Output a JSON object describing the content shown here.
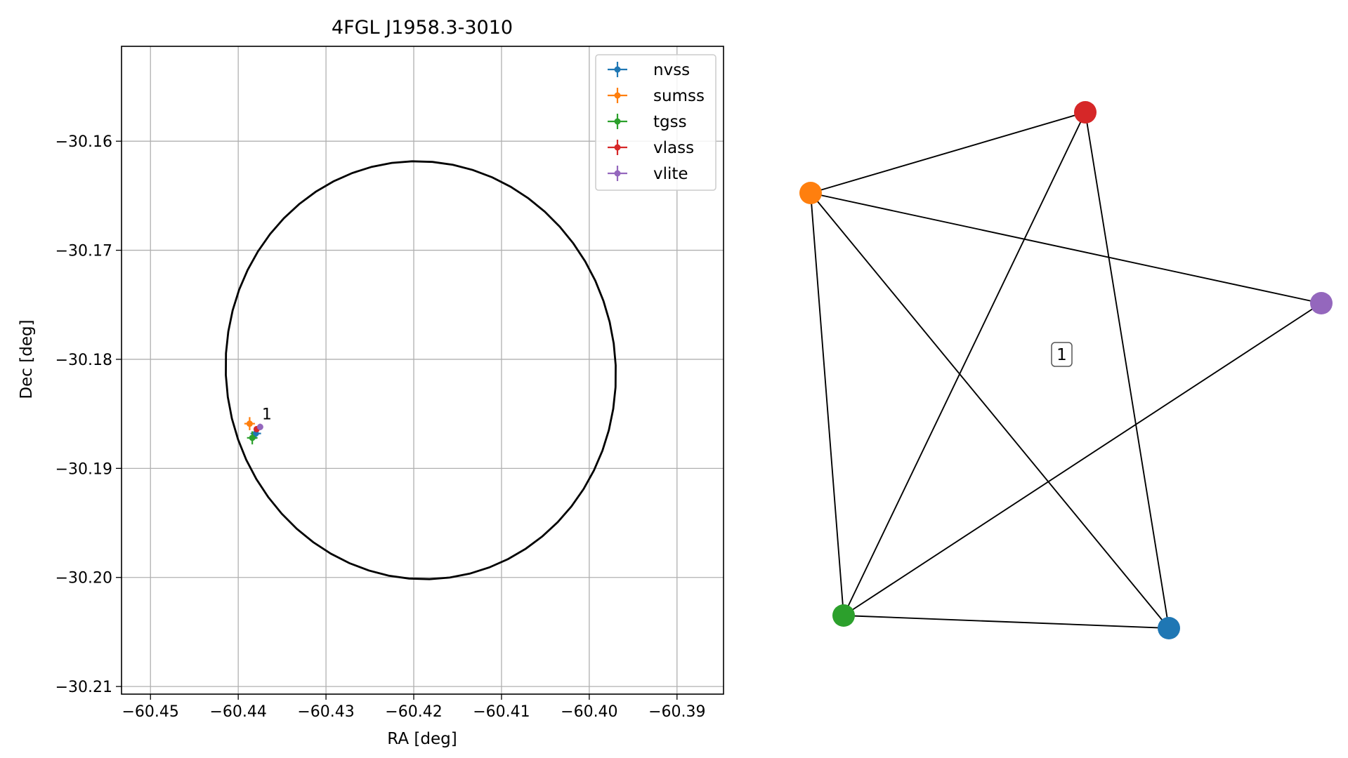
{
  "chart_data": [
    {
      "type": "scatter",
      "title": "4FGL J1958.3-3010",
      "xlabel": "RA [deg]",
      "ylabel": "Dec [deg]",
      "xlim": [
        -60.4533,
        -60.3847
      ],
      "ylim": [
        -30.2107,
        -30.1513
      ],
      "x_ticks": [
        -60.45,
        -60.44,
        -60.43,
        -60.42,
        -60.41,
        -60.4,
        -60.39
      ],
      "x_tick_labels": [
        "−60.45",
        "−60.44",
        "−60.43",
        "−60.42",
        "−60.41",
        "−60.40",
        "−60.39"
      ],
      "y_ticks": [
        -30.16,
        -30.17,
        -30.18,
        -30.19,
        -30.2,
        -30.21
      ],
      "y_tick_labels": [
        "−30.16",
        "−30.17",
        "−30.18",
        "−30.19",
        "−30.20",
        "−30.21"
      ],
      "grid": true,
      "legend_placement": "upper-right",
      "ellipse": {
        "center_ra": -60.4192,
        "center_dec": -30.181,
        "semi_axis_ra": 0.02225,
        "semi_axis_dec": 0.01915,
        "angle_deg": -4,
        "color": "#000000"
      },
      "series": [
        {
          "name": "nvss",
          "color": "#1f77b4",
          "x": -60.438,
          "y": -30.1868,
          "xerr": 0.0006,
          "yerr": 0.0005
        },
        {
          "name": "sumss",
          "color": "#ff7f0e",
          "x": -60.4387,
          "y": -30.1859,
          "xerr": 0.0006,
          "yerr": 0.0006
        },
        {
          "name": "tgss",
          "color": "#2ca02c",
          "x": -60.4384,
          "y": -30.1872,
          "xerr": 0.0006,
          "yerr": 0.0006
        },
        {
          "name": "vlass",
          "color": "#d62728",
          "x": -60.4379,
          "y": -30.1864,
          "xerr": 0.0002,
          "yerr": 0.0002
        },
        {
          "name": "vlite",
          "color": "#9467bd",
          "x": -60.4375,
          "y": -30.1862,
          "xerr": 0.0003,
          "yerr": 0.0003
        }
      ],
      "annotations": [
        {
          "text": "1",
          "x": -60.4373,
          "y": -30.1855
        }
      ]
    },
    {
      "type": "graph",
      "nodes": [
        {
          "id": "nvss",
          "color": "#1f77b4"
        },
        {
          "id": "sumss",
          "color": "#ff7f0e"
        },
        {
          "id": "tgss",
          "color": "#2ca02c"
        },
        {
          "id": "vlass",
          "color": "#d62728"
        },
        {
          "id": "vlite",
          "color": "#9467bd"
        }
      ],
      "edges": [
        [
          "sumss",
          "vlass"
        ],
        [
          "sumss",
          "vlite"
        ],
        [
          "sumss",
          "tgss"
        ],
        [
          "sumss",
          "nvss"
        ],
        [
          "vlass",
          "tgss"
        ],
        [
          "vlass",
          "nvss"
        ],
        [
          "tgss",
          "nvss"
        ],
        [
          "tgss",
          "vlite"
        ]
      ],
      "label": "1"
    }
  ]
}
